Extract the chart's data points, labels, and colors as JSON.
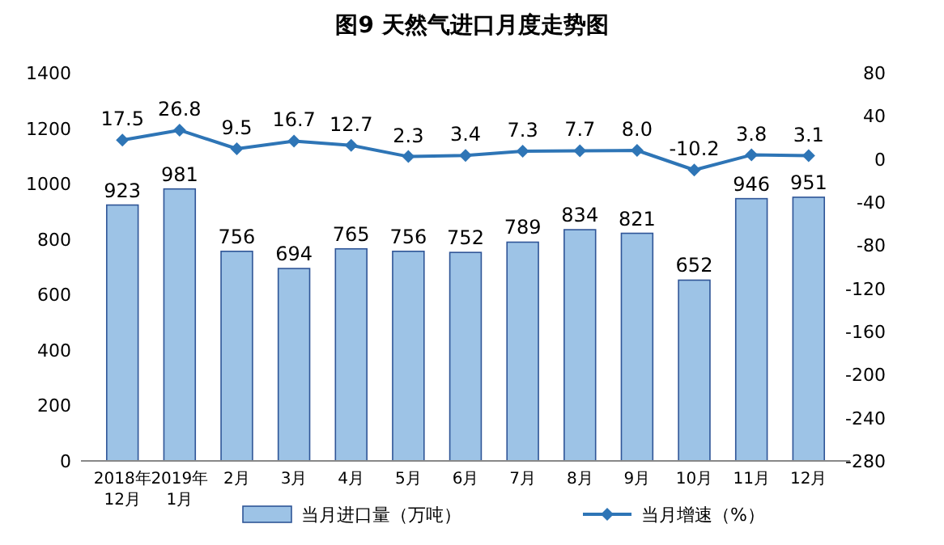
{
  "chart_data": {
    "type": "bar",
    "title": "图9  天然气进口月度走势图",
    "categories": [
      "2018年\n12月",
      "2019年\n1月",
      "2月",
      "3月",
      "4月",
      "5月",
      "6月",
      "7月",
      "8月",
      "9月",
      "10月",
      "11月",
      "12月"
    ],
    "series": [
      {
        "name": "当月进口量（万吨）",
        "color": "#9dc3e6",
        "values": [
          923,
          981,
          756,
          694,
          765,
          756,
          752,
          789,
          834,
          821,
          652,
          946,
          951
        ],
        "value_labels": [
          "923",
          "981",
          "756",
          "694",
          "765",
          "756",
          "752",
          "789",
          "834",
          "821",
          "652",
          "946",
          "951"
        ]
      },
      {
        "name": "当月增速（%）",
        "type": "line",
        "axis": "y2",
        "color": "#2e75b6",
        "marker": "diamond",
        "values": [
          17.5,
          26.8,
          9.5,
          16.7,
          12.7,
          2.3,
          3.4,
          7.3,
          7.7,
          8.0,
          -10.2,
          3.8,
          3.1
        ],
        "value_labels": [
          "17.5",
          "26.8",
          "9.5",
          "16.7",
          "12.7",
          "2.3",
          "3.4",
          "7.3",
          "7.7",
          "8.0",
          "-10.2",
          "3.8",
          "3.1"
        ]
      }
    ],
    "ylim": [
      0,
      1400
    ],
    "yticks": [
      0,
      200,
      400,
      600,
      800,
      1000,
      1200,
      1400
    ],
    "y2lim": [
      -280,
      80
    ],
    "y2ticks": [
      -280,
      -240,
      -200,
      -160,
      -120,
      -80,
      -40,
      0,
      40,
      80
    ],
    "grid": false,
    "legend": "bottom"
  }
}
